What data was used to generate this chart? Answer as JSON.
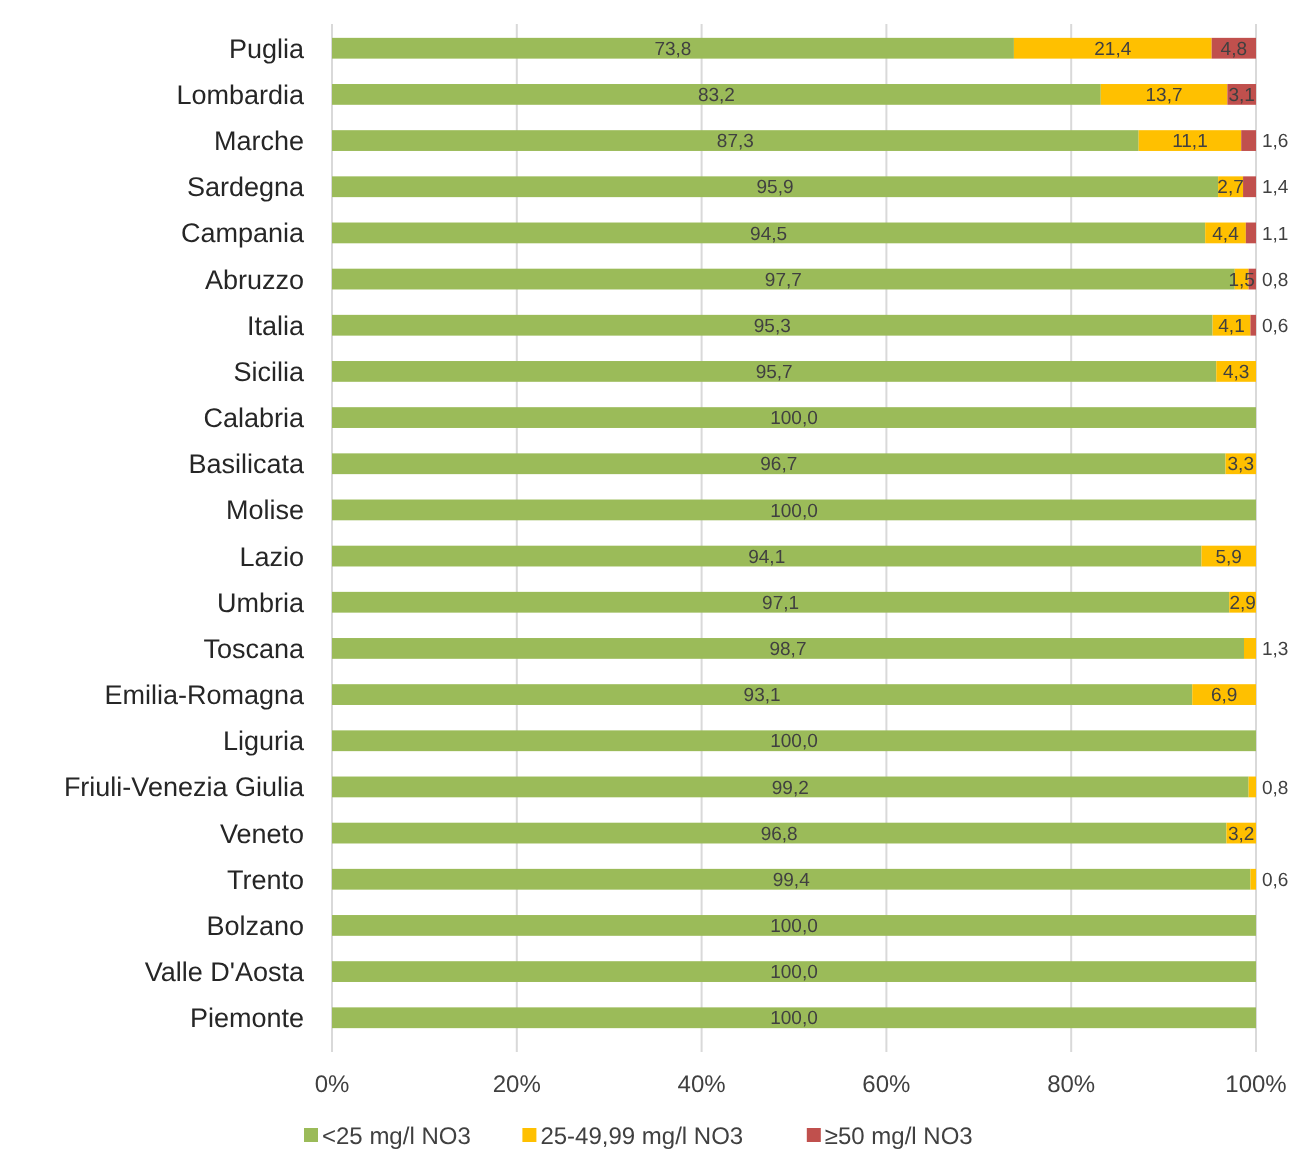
{
  "chart_data": {
    "type": "bar",
    "orientation": "horizontal",
    "stacked": true,
    "categories": [
      "Puglia",
      "Lombardia",
      "Marche",
      "Sardegna",
      "Campania",
      "Abruzzo",
      "Italia",
      "Sicilia",
      "Calabria",
      "Basilicata",
      "Molise",
      "Lazio",
      "Umbria",
      "Toscana",
      "Emilia-Romagna",
      "Liguria",
      "Friuli-Venezia Giulia",
      "Veneto",
      "Trento",
      "Bolzano",
      "Valle D'Aosta",
      "Piemonte"
    ],
    "series": [
      {
        "name": "<25 mg/l NO3",
        "color": "#9bbb59",
        "values": [
          73.8,
          83.2,
          87.3,
          95.9,
          94.5,
          97.7,
          95.3,
          95.7,
          100,
          96.7,
          100,
          94.1,
          97.1,
          98.7,
          93.1,
          100,
          99.2,
          96.8,
          99.4,
          100,
          100,
          100
        ],
        "value_labels": [
          "73,8",
          "83,2",
          "87,3",
          "95,9",
          "94,5",
          "97,7",
          "95,3",
          "95,7",
          "100,0",
          "96,7",
          "100,0",
          "94,1",
          "97,1",
          "98,7",
          "93,1",
          "100,0",
          "99,2",
          "96,8",
          "99,4",
          "100,0",
          "100,0",
          "100,0"
        ]
      },
      {
        "name": "25-49,99 mg/l NO3",
        "color": "#ffc000",
        "values": [
          21.4,
          13.7,
          11.1,
          2.7,
          4.4,
          1.5,
          4.1,
          4.3,
          null,
          3.3,
          null,
          5.9,
          2.9,
          1.3,
          6.9,
          null,
          0.8,
          3.2,
          0.6,
          null,
          null,
          null
        ],
        "value_labels": [
          "21,4",
          "13,7",
          "11,1",
          "2,7",
          "4,4",
          "1,5",
          "4,1",
          "4,3",
          null,
          "3,3",
          null,
          "5,9",
          "2,9",
          "1,3",
          "6,9",
          null,
          "0,8",
          "3,2",
          "0,6",
          null,
          null,
          null
        ]
      },
      {
        "name": "≥50 mg/l NO3",
        "color": "#c0504d",
        "values": [
          4.8,
          3.1,
          1.6,
          1.4,
          1.1,
          0.8,
          0.6,
          null,
          null,
          null,
          null,
          null,
          null,
          null,
          null,
          null,
          null,
          null,
          null,
          null,
          null,
          null
        ],
        "value_labels": [
          "4,8",
          "3,1",
          "1,6",
          "1,4",
          "1,1",
          "0,8",
          "0,6",
          null,
          null,
          null,
          null,
          null,
          null,
          null,
          null,
          null,
          null,
          null,
          null,
          null,
          null,
          null
        ]
      }
    ],
    "xlim": [
      0,
      100
    ],
    "xticks": [
      {
        "value": 0,
        "label": "0%"
      },
      {
        "value": 20,
        "label": "20%"
      },
      {
        "value": 40,
        "label": "40%"
      },
      {
        "value": 60,
        "label": "60%"
      },
      {
        "value": 80,
        "label": "80%"
      },
      {
        "value": 100,
        "label": "100%"
      }
    ],
    "grid": "x",
    "legend": "bottom"
  }
}
